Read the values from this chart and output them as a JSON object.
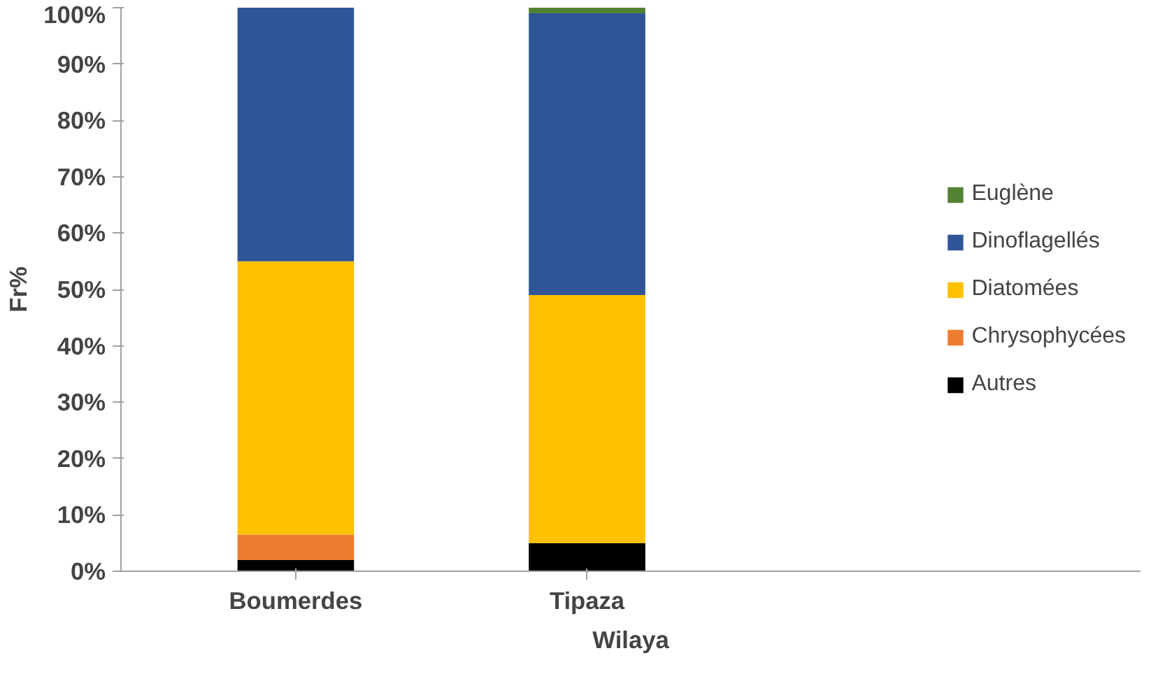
{
  "chart_data": {
    "type": "bar",
    "stacked": true,
    "xlabel": "Wilaya",
    "ylabel": "Fr%",
    "categories": [
      "Boumerdes",
      "Tipaza"
    ],
    "series": [
      {
        "name": "Autres",
        "color": "#000000",
        "values": [
          2,
          5
        ]
      },
      {
        "name": "Chrysophycées",
        "color": "#ed7d31",
        "values": [
          4.5,
          0
        ]
      },
      {
        "name": "Diatomées",
        "color": "#ffc000",
        "values": [
          48.5,
          44
        ]
      },
      {
        "name": "Dinoflagellés",
        "color": "#2f5597",
        "values": [
          45,
          50
        ]
      },
      {
        "name": "Euglène",
        "color": "#548235",
        "values": [
          0,
          1
        ]
      }
    ],
    "ylim": [
      0,
      100
    ],
    "yticks": [
      {
        "value": 0,
        "label": "0%"
      },
      {
        "value": 10,
        "label": "10%"
      },
      {
        "value": 20,
        "label": "20%"
      },
      {
        "value": 30,
        "label": "30%"
      },
      {
        "value": 40,
        "label": "40%"
      },
      {
        "value": 50,
        "label": "50%"
      },
      {
        "value": 60,
        "label": "60%"
      },
      {
        "value": 70,
        "label": "70%"
      },
      {
        "value": 80,
        "label": "80%"
      },
      {
        "value": 90,
        "label": "90%"
      },
      {
        "value": 100,
        "label": "100%"
      }
    ],
    "grid": false,
    "legend": "right"
  }
}
